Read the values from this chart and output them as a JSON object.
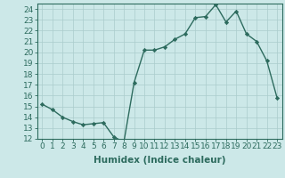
{
  "title": "",
  "xlabel": "Humidex (Indice chaleur)",
  "ylabel": "",
  "x": [
    0,
    1,
    2,
    3,
    4,
    5,
    6,
    7,
    8,
    9,
    10,
    11,
    12,
    13,
    14,
    15,
    16,
    17,
    18,
    19,
    20,
    21,
    22,
    23
  ],
  "y": [
    15.2,
    14.7,
    14.0,
    13.6,
    13.3,
    13.4,
    13.5,
    12.2,
    11.7,
    17.2,
    20.2,
    20.2,
    20.5,
    21.2,
    21.7,
    23.2,
    23.3,
    24.4,
    22.8,
    23.8,
    21.7,
    21.0,
    19.2,
    15.8
  ],
  "line_color": "#2d6b5e",
  "marker": "D",
  "markersize": 2.2,
  "bg_color": "#cce8e8",
  "grid_color": "#aacccc",
  "xlim": [
    -0.5,
    23.5
  ],
  "ylim": [
    12,
    24.5
  ],
  "yticks": [
    12,
    13,
    14,
    15,
    16,
    17,
    18,
    19,
    20,
    21,
    22,
    23,
    24
  ],
  "xticks": [
    0,
    1,
    2,
    3,
    4,
    5,
    6,
    7,
    8,
    9,
    10,
    11,
    12,
    13,
    14,
    15,
    16,
    17,
    18,
    19,
    20,
    21,
    22,
    23
  ],
  "tick_fontsize": 6.5,
  "label_fontsize": 7.5,
  "linewidth": 1.0
}
